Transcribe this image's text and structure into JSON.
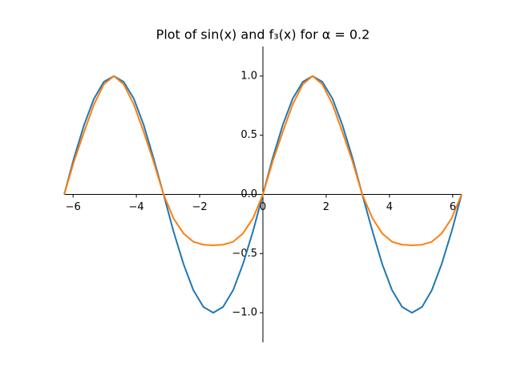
{
  "chart_data": {
    "type": "line",
    "title": "Plot of sin(x) and f₃(x) for α = 0.2",
    "x": [
      -6.28,
      -5.97,
      -5.65,
      -5.34,
      -5.03,
      -4.71,
      -4.4,
      -4.08,
      -3.77,
      -3.46,
      -3.14,
      -2.83,
      -2.51,
      -2.2,
      -1.88,
      -1.57,
      -1.26,
      -0.94,
      -0.63,
      -0.31,
      0,
      0.31,
      0.63,
      0.94,
      1.26,
      1.57,
      1.88,
      2.2,
      2.51,
      2.83,
      3.14,
      3.46,
      3.77,
      4.08,
      4.4,
      4.71,
      5.03,
      5.34,
      5.65,
      5.97,
      6.28
    ],
    "series": [
      {
        "name": "sin(x)",
        "color": "#1f77b4",
        "values": [
          0,
          0.309,
          0.588,
          0.809,
          0.951,
          1,
          0.951,
          0.809,
          0.588,
          0.309,
          0,
          -0.309,
          -0.588,
          -0.809,
          -0.951,
          -1,
          -0.951,
          -0.809,
          -0.588,
          -0.309,
          0,
          0.309,
          0.588,
          0.809,
          0.951,
          1,
          0.951,
          0.809,
          0.588,
          0.309,
          0,
          -0.309,
          -0.588,
          -0.809,
          -0.951,
          -1,
          -0.951,
          -0.809,
          -0.588,
          -0.309,
          0
        ]
      },
      {
        "name": "f₃(x)",
        "color": "#ff7f0e",
        "values": [
          0,
          0.28,
          0.53,
          0.76,
          0.93,
          1,
          0.93,
          0.76,
          0.53,
          0.28,
          0,
          -0.2,
          -0.33,
          -0.4,
          -0.425,
          -0.43,
          -0.425,
          -0.4,
          -0.33,
          -0.2,
          0,
          0.28,
          0.53,
          0.76,
          0.93,
          1,
          0.93,
          0.76,
          0.53,
          0.28,
          0,
          -0.2,
          -0.33,
          -0.4,
          -0.425,
          -0.43,
          -0.425,
          -0.4,
          -0.33,
          -0.2,
          0
        ]
      }
    ],
    "xlim": [
      -6.283,
      6.283
    ],
    "ylim": [
      -1.25,
      1.25
    ],
    "xticks": [
      {
        "value": -6,
        "label": "−6"
      },
      {
        "value": -4,
        "label": "−4"
      },
      {
        "value": -2,
        "label": "−2"
      },
      0,
      2,
      4,
      6
    ],
    "yticks": [
      {
        "value": -1,
        "label": "−1.0"
      },
      {
        "value": -0.5,
        "label": "−0.5"
      },
      {
        "value": 0,
        "label": "0.0"
      },
      {
        "value": 0.5,
        "label": "0.5"
      },
      {
        "value": 1,
        "label": "1.0"
      }
    ]
  }
}
